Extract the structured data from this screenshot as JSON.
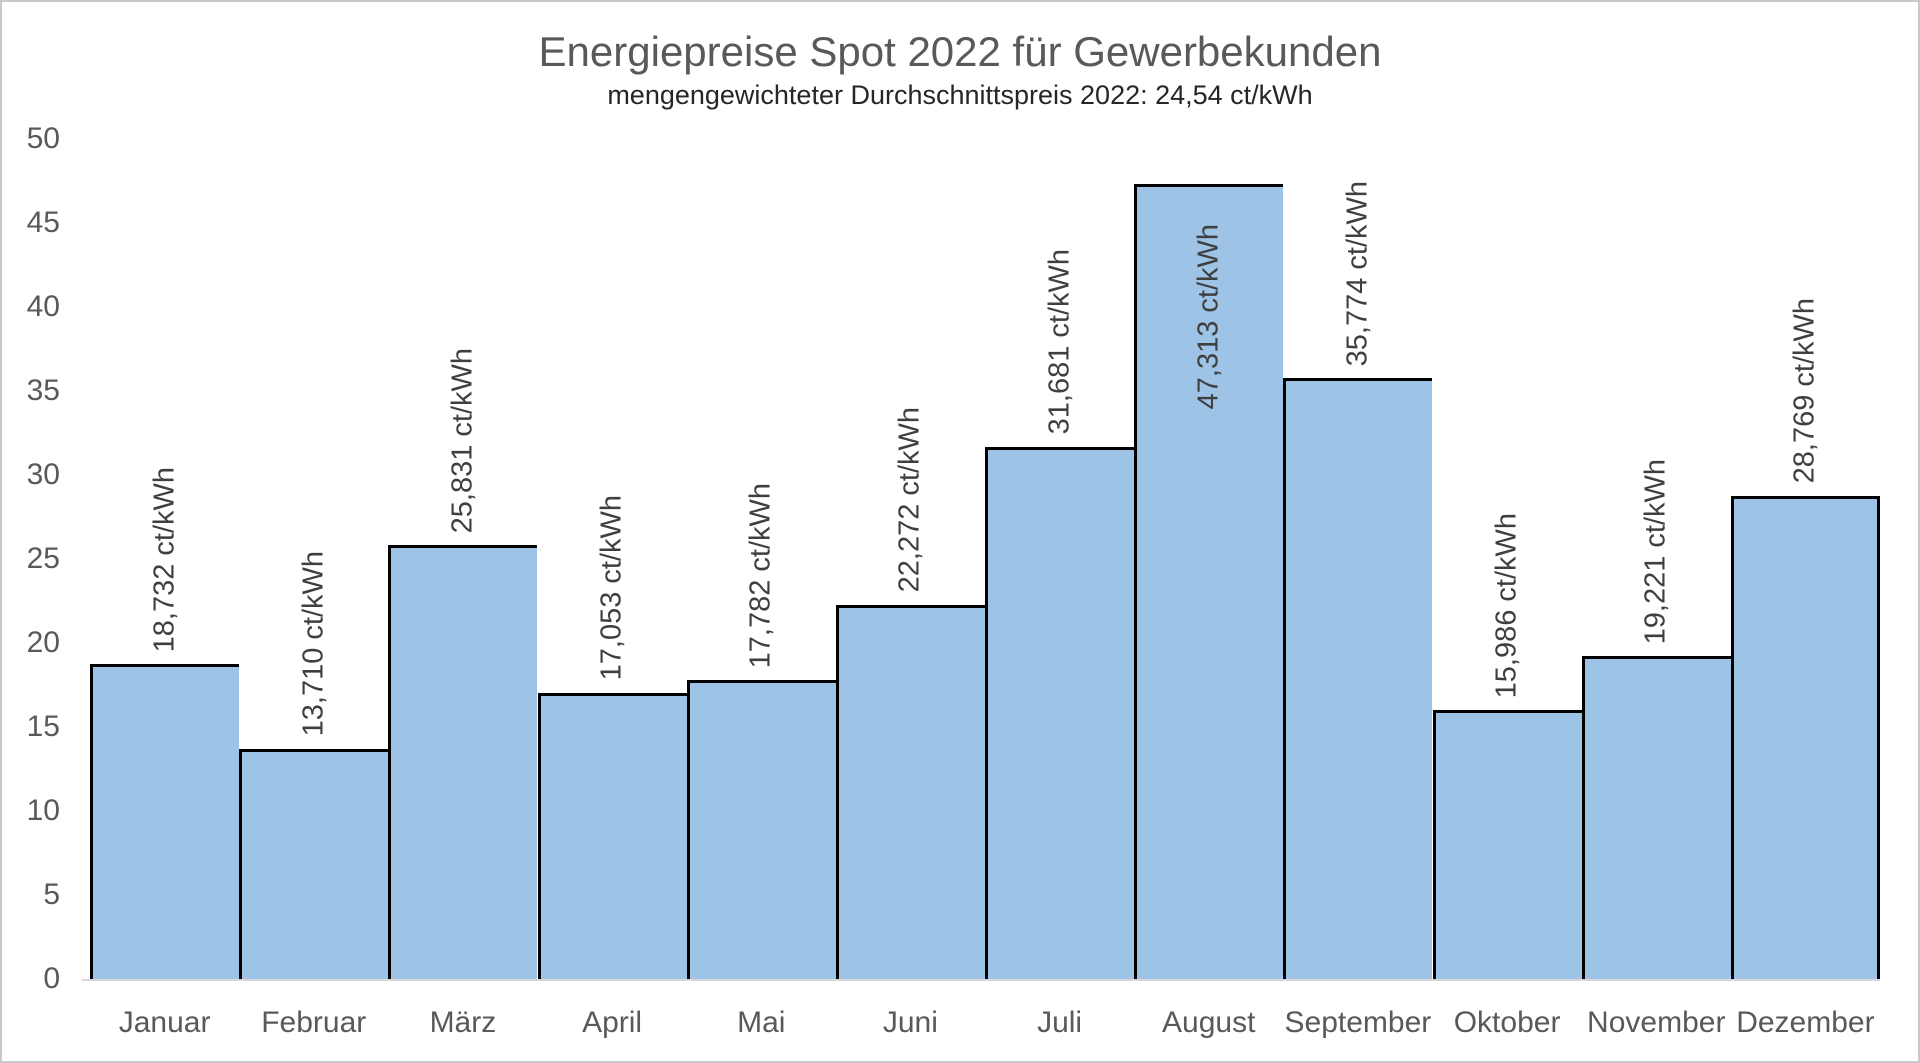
{
  "page": {
    "background": "#ffffff",
    "frame_border_color": "#c9c9c9"
  },
  "chart_data": {
    "type": "bar",
    "title": "Energiepreise Spot 2022 für Gewerbekunden",
    "subtitle": "mengengewichteter Durchschnittspreis 2022: 24,54 ct/kWh",
    "categories": [
      "Januar",
      "Februar",
      "März",
      "April",
      "Mai",
      "Juni",
      "Juli",
      "August",
      "September",
      "Oktober",
      "November",
      "Dezember"
    ],
    "values": [
      18.732,
      13.71,
      25.831,
      17.053,
      17.782,
      22.272,
      31.681,
      47.313,
      35.774,
      15.986,
      19.221,
      28.769
    ],
    "value_labels": [
      "18,732 ct/kWh",
      "13,710 ct/kWh",
      "25,831 ct/kWh",
      "17,053 ct/kWh",
      "17,782 ct/kWh",
      "22,272 ct/kWh",
      "31,681 ct/kWh",
      "47,313 ct/kWh",
      "35,774 ct/kWh",
      "15,986 ct/kWh",
      "19,221 ct/kWh",
      "28,769 ct/kWh"
    ],
    "unit": "ct/kWh",
    "xlabel": "",
    "ylabel": "",
    "ylim": [
      0,
      50
    ],
    "ytick_step": 5,
    "yticks": [
      0,
      5,
      10,
      15,
      20,
      25,
      30,
      35,
      40,
      45,
      50
    ],
    "grid": false,
    "legend_position": "none",
    "value_label_rotation_deg": 90,
    "colors": {
      "bar_fill": "#9DC3E6",
      "bar_border": "#000000",
      "value_label": "#3f3f3f",
      "axis_text": "#595959",
      "subtitle_text": "#262626",
      "axis_line": "#d6d6d6"
    }
  }
}
